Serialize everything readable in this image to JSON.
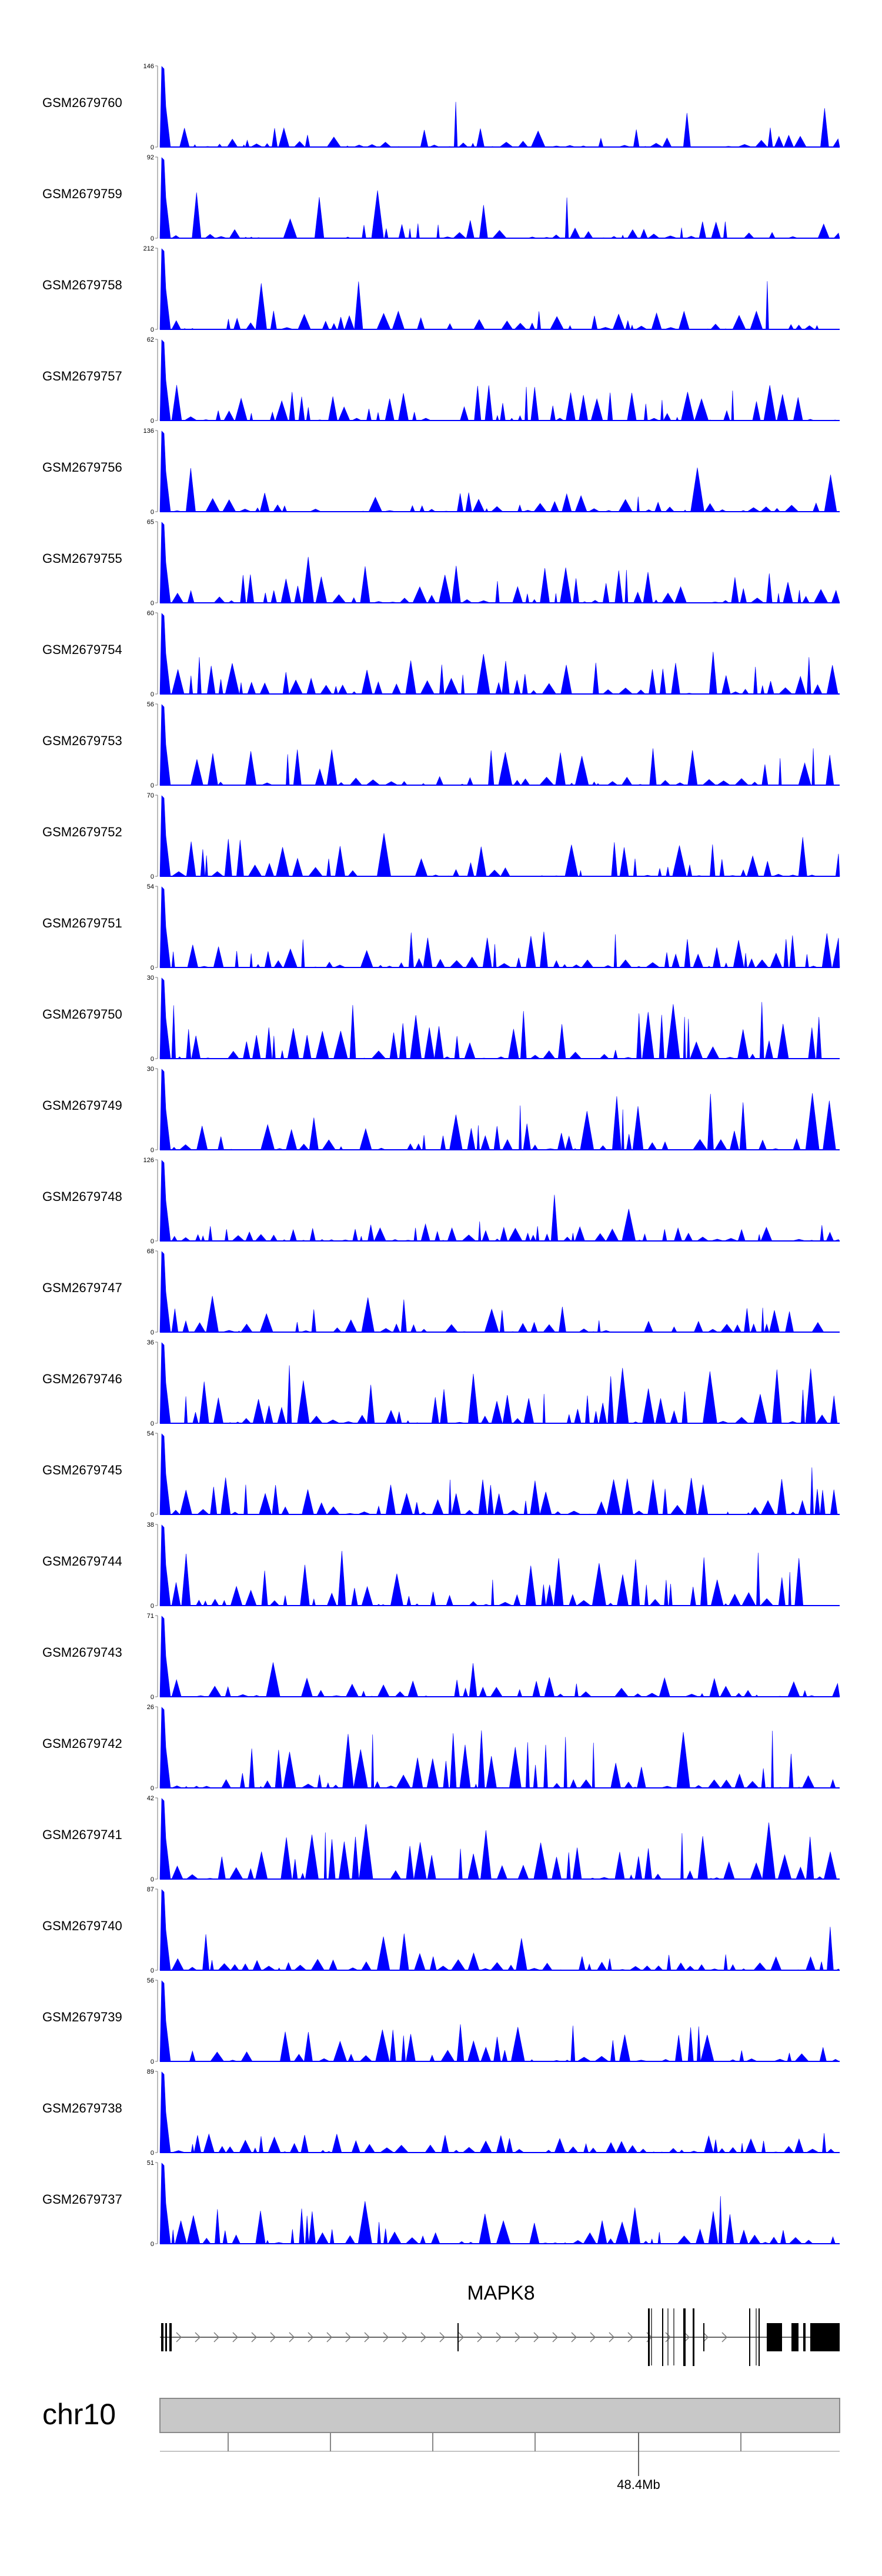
{
  "chart_data": {
    "type": "area",
    "tracks": [
      {
        "name": "GSM2679760",
        "ymax": 146,
        "ymin": 0
      },
      {
        "name": "GSM2679759",
        "ymax": 92,
        "ymin": 0
      },
      {
        "name": "GSM2679758",
        "ymax": 212,
        "ymin": 0
      },
      {
        "name": "GSM2679757",
        "ymax": 62,
        "ymin": 0
      },
      {
        "name": "GSM2679756",
        "ymax": 136,
        "ymin": 0
      },
      {
        "name": "GSM2679755",
        "ymax": 65,
        "ymin": 0
      },
      {
        "name": "GSM2679754",
        "ymax": 60,
        "ymin": 0
      },
      {
        "name": "GSM2679753",
        "ymax": 56,
        "ymin": 0
      },
      {
        "name": "GSM2679752",
        "ymax": 70,
        "ymin": 0
      },
      {
        "name": "GSM2679751",
        "ymax": 54,
        "ymin": 0
      },
      {
        "name": "GSM2679750",
        "ymax": 30,
        "ymin": 0
      },
      {
        "name": "GSM2679749",
        "ymax": 30,
        "ymin": 0
      },
      {
        "name": "GSM2679748",
        "ymax": 126,
        "ymin": 0
      },
      {
        "name": "GSM2679747",
        "ymax": 68,
        "ymin": 0
      },
      {
        "name": "GSM2679746",
        "ymax": 36,
        "ymin": 0
      },
      {
        "name": "GSM2679745",
        "ymax": 54,
        "ymin": 0
      },
      {
        "name": "GSM2679744",
        "ymax": 38,
        "ymin": 0
      },
      {
        "name": "GSM2679743",
        "ymax": 71,
        "ymin": 0
      },
      {
        "name": "GSM2679742",
        "ymax": 26,
        "ymin": 0
      },
      {
        "name": "GSM2679741",
        "ymax": 42,
        "ymin": 0
      },
      {
        "name": "GSM2679740",
        "ymax": 87,
        "ymin": 0
      },
      {
        "name": "GSM2679739",
        "ymax": 56,
        "ymin": 0
      },
      {
        "name": "GSM2679738",
        "ymax": 89,
        "ymin": 0
      },
      {
        "name": "GSM2679737",
        "ymax": 51,
        "ymin": 0
      }
    ],
    "gene": {
      "name": "MAPK8",
      "strand": "+"
    },
    "chromosome": "chr10",
    "axis_tick_label": "48.4Mb",
    "series_color": "#0000ff"
  }
}
